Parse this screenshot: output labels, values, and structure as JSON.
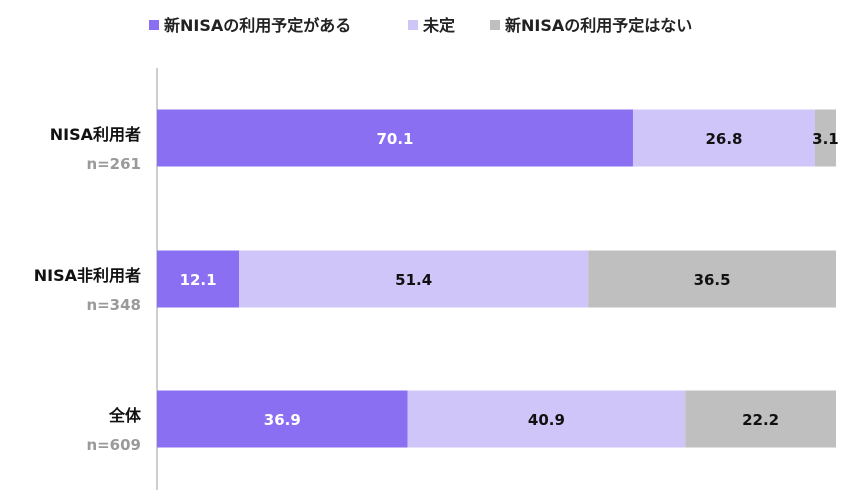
{
  "chart_data": {
    "type": "bar",
    "orientation": "horizontal",
    "stacked": true,
    "categories": [
      "NISA利用者",
      "NISA非利用者",
      "全体"
    ],
    "sample_sizes": [
      "n=261",
      "n=348",
      "n=609"
    ],
    "series": [
      {
        "name": "新NISAの利用予定がある",
        "values": [
          70.1,
          12.1,
          36.9
        ],
        "color": "#8b6ff2",
        "label_color": "#ffffff"
      },
      {
        "name": "未定",
        "values": [
          26.8,
          51.4,
          40.9
        ],
        "color": "#cfc5f8",
        "label_color": "#111111"
      },
      {
        "name": "新NISAの利用予定はない",
        "values": [
          3.1,
          36.5,
          22.2
        ],
        "color": "#bfbfbf",
        "label_color": "#111111"
      }
    ],
    "xlim": [
      0,
      100
    ],
    "grid": false,
    "legend_position": "top"
  }
}
